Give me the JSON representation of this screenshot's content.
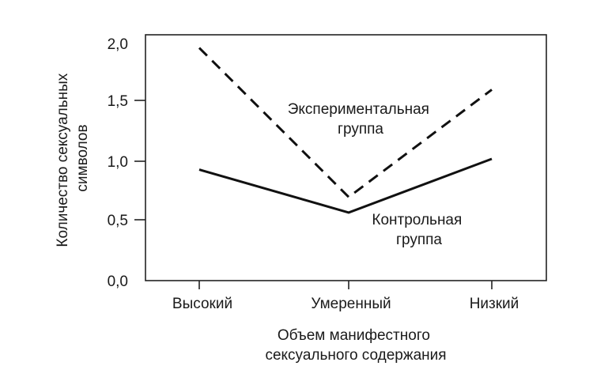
{
  "chart_data": {
    "type": "line",
    "title": "",
    "xlabel": "Объем манифестного сексуального содержания",
    "xlabel_lines": [
      "Объем манифестного",
      "сексуального содержания"
    ],
    "ylabel": "Количество сексуальных символов",
    "ylabel_lines": [
      "Количество сексуальных",
      "символов"
    ],
    "categories": [
      "Высокий",
      "Умеренный",
      "Низкий"
    ],
    "yticks": [
      "0,0",
      "0,5",
      "1,0",
      "1,5",
      "2,0"
    ],
    "ytick_values": [
      0.0,
      0.5,
      1.0,
      1.5,
      2.0
    ],
    "ylim": [
      0,
      2.0
    ],
    "grid": false,
    "legend": "inline annotations",
    "series": [
      {
        "name": "Экспериментальная группа",
        "label_lines": [
          "Экспериментальная",
          "группа"
        ],
        "style": "dashed",
        "color": "#111111",
        "values": [
          1.95,
          0.7,
          1.6
        ]
      },
      {
        "name": "Контрольная группа",
        "label_lines": [
          "Контрольная",
          "группа"
        ],
        "style": "solid",
        "color": "#111111",
        "values": [
          0.93,
          0.57,
          1.02
        ]
      }
    ]
  }
}
